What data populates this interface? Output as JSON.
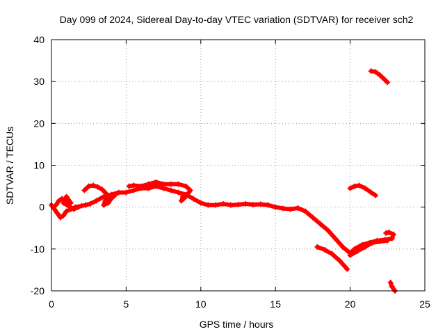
{
  "chart_data": {
    "type": "scatter",
    "title": "Day 099 of 2024, Sidereal Day-to-day VTEC variation (SDTVAR) for receiver sch2",
    "xlabel": "GPS time / hours",
    "ylabel": "SDTVAR / TECUs",
    "xlim": [
      0,
      25
    ],
    "ylim": [
      -20,
      40
    ],
    "xticks": [
      0,
      5,
      10,
      15,
      20,
      25
    ],
    "yticks": [
      -20,
      -10,
      0,
      10,
      20,
      30,
      40
    ],
    "grid": true,
    "series": [
      {
        "name": "main-track",
        "color": "#ff0000",
        "points": [
          [
            0.0,
            0.5
          ],
          [
            0.2,
            -0.5
          ],
          [
            0.4,
            -1.5
          ],
          [
            0.6,
            -2.5
          ],
          [
            0.8,
            -2.0
          ],
          [
            1.0,
            -1.0
          ],
          [
            1.3,
            -0.5
          ],
          [
            1.6,
            0.0
          ],
          [
            2.0,
            0.3
          ],
          [
            2.3,
            0.5
          ],
          [
            2.6,
            0.8
          ],
          [
            3.0,
            1.5
          ],
          [
            3.5,
            2.5
          ],
          [
            4.0,
            3.0
          ],
          [
            4.5,
            3.5
          ],
          [
            5.0,
            3.5
          ],
          [
            5.5,
            4.0
          ],
          [
            6.0,
            4.5
          ],
          [
            6.5,
            4.5
          ],
          [
            7.0,
            5.0
          ],
          [
            7.5,
            4.5
          ],
          [
            8.0,
            4.0
          ],
          [
            8.5,
            3.5
          ],
          [
            9.0,
            3.0
          ],
          [
            9.5,
            2.0
          ],
          [
            10.0,
            1.0
          ],
          [
            10.5,
            0.5
          ],
          [
            11.0,
            0.5
          ],
          [
            11.5,
            0.8
          ],
          [
            12.0,
            0.5
          ],
          [
            12.5,
            0.6
          ],
          [
            13.0,
            0.8
          ],
          [
            13.5,
            0.6
          ],
          [
            14.0,
            0.7
          ],
          [
            14.5,
            0.5
          ],
          [
            15.0,
            0.0
          ],
          [
            15.5,
            -0.3
          ],
          [
            16.0,
            -0.5
          ],
          [
            16.5,
            -0.2
          ],
          [
            17.0,
            -1.0
          ],
          [
            17.5,
            -2.5
          ],
          [
            18.0,
            -4.0
          ],
          [
            18.5,
            -5.5
          ],
          [
            19.0,
            -7.5
          ],
          [
            19.5,
            -9.5
          ],
          [
            20.0,
            -11.0
          ],
          [
            20.3,
            -10.0
          ],
          [
            20.8,
            -9.0
          ],
          [
            21.3,
            -8.5
          ],
          [
            21.8,
            -8.0
          ],
          [
            22.3,
            -7.8
          ],
          [
            22.8,
            -7.5
          ],
          [
            22.9,
            -6.5
          ],
          [
            22.6,
            -6.0
          ],
          [
            22.4,
            -6.2
          ]
        ]
      },
      {
        "name": "early-wiggle",
        "color": "#ff0000",
        "points": [
          [
            0.3,
            0.5
          ],
          [
            0.5,
            1.5
          ],
          [
            0.7,
            2.0
          ],
          [
            0.9,
            1.5
          ],
          [
            1.1,
            0.5
          ],
          [
            1.3,
            1.0
          ],
          [
            1.0,
            2.5
          ],
          [
            0.8,
            1.0
          ],
          [
            1.5,
            -0.5
          ],
          [
            1.8,
            0.0
          ]
        ]
      },
      {
        "name": "upper-branch-2-4h",
        "color": "#ff0000",
        "points": [
          [
            2.2,
            4.0
          ],
          [
            2.5,
            5.0
          ],
          [
            2.8,
            5.2
          ],
          [
            3.1,
            4.8
          ],
          [
            3.4,
            4.2
          ],
          [
            3.6,
            3.5
          ],
          [
            3.8,
            2.5
          ],
          [
            3.6,
            1.5
          ],
          [
            3.5,
            0.5
          ],
          [
            3.8,
            1.0
          ],
          [
            4.0,
            2.0
          ],
          [
            4.3,
            3.0
          ]
        ]
      },
      {
        "name": "upper-branch-5-9h",
        "color": "#ff0000",
        "points": [
          [
            5.2,
            5.0
          ],
          [
            5.5,
            5.2
          ],
          [
            6.0,
            5.0
          ],
          [
            6.5,
            5.5
          ],
          [
            7.0,
            6.0
          ],
          [
            7.5,
            5.5
          ],
          [
            8.0,
            5.5
          ],
          [
            8.5,
            5.5
          ],
          [
            9.0,
            5.0
          ],
          [
            9.3,
            4.0
          ],
          [
            9.0,
            2.5
          ],
          [
            8.7,
            1.5
          ],
          [
            8.8,
            2.5
          ]
        ]
      },
      {
        "name": "late-branch-20-23h",
        "color": "#ff0000",
        "points": [
          [
            20.0,
            -11.5
          ],
          [
            20.5,
            -10.5
          ],
          [
            21.0,
            -9.5
          ],
          [
            21.5,
            -8.5
          ],
          [
            22.0,
            -8.2
          ],
          [
            22.5,
            -8.0
          ]
        ]
      },
      {
        "name": "isolated-segment-a",
        "color": "#ff0000",
        "points": [
          [
            17.8,
            -9.5
          ],
          [
            18.3,
            -10.2
          ],
          [
            18.8,
            -11.2
          ],
          [
            19.3,
            -12.8
          ],
          [
            19.8,
            -14.8
          ]
        ]
      },
      {
        "name": "isolated-segment-b",
        "color": "#ff0000",
        "points": [
          [
            20.0,
            4.5
          ],
          [
            20.3,
            5.0
          ],
          [
            20.6,
            5.2
          ],
          [
            21.0,
            4.5
          ],
          [
            21.4,
            3.5
          ],
          [
            21.7,
            2.8
          ]
        ]
      },
      {
        "name": "isolated-segment-c",
        "color": "#ff0000",
        "points": [
          [
            21.4,
            32.5
          ],
          [
            21.7,
            32.3
          ],
          [
            22.0,
            31.5
          ],
          [
            22.3,
            30.5
          ],
          [
            22.5,
            29.8
          ]
        ]
      },
      {
        "name": "isolated-segment-d",
        "color": "#ff0000",
        "points": [
          [
            22.7,
            -18.0
          ],
          [
            22.8,
            -19.0
          ],
          [
            23.0,
            -20.0
          ]
        ]
      }
    ]
  }
}
